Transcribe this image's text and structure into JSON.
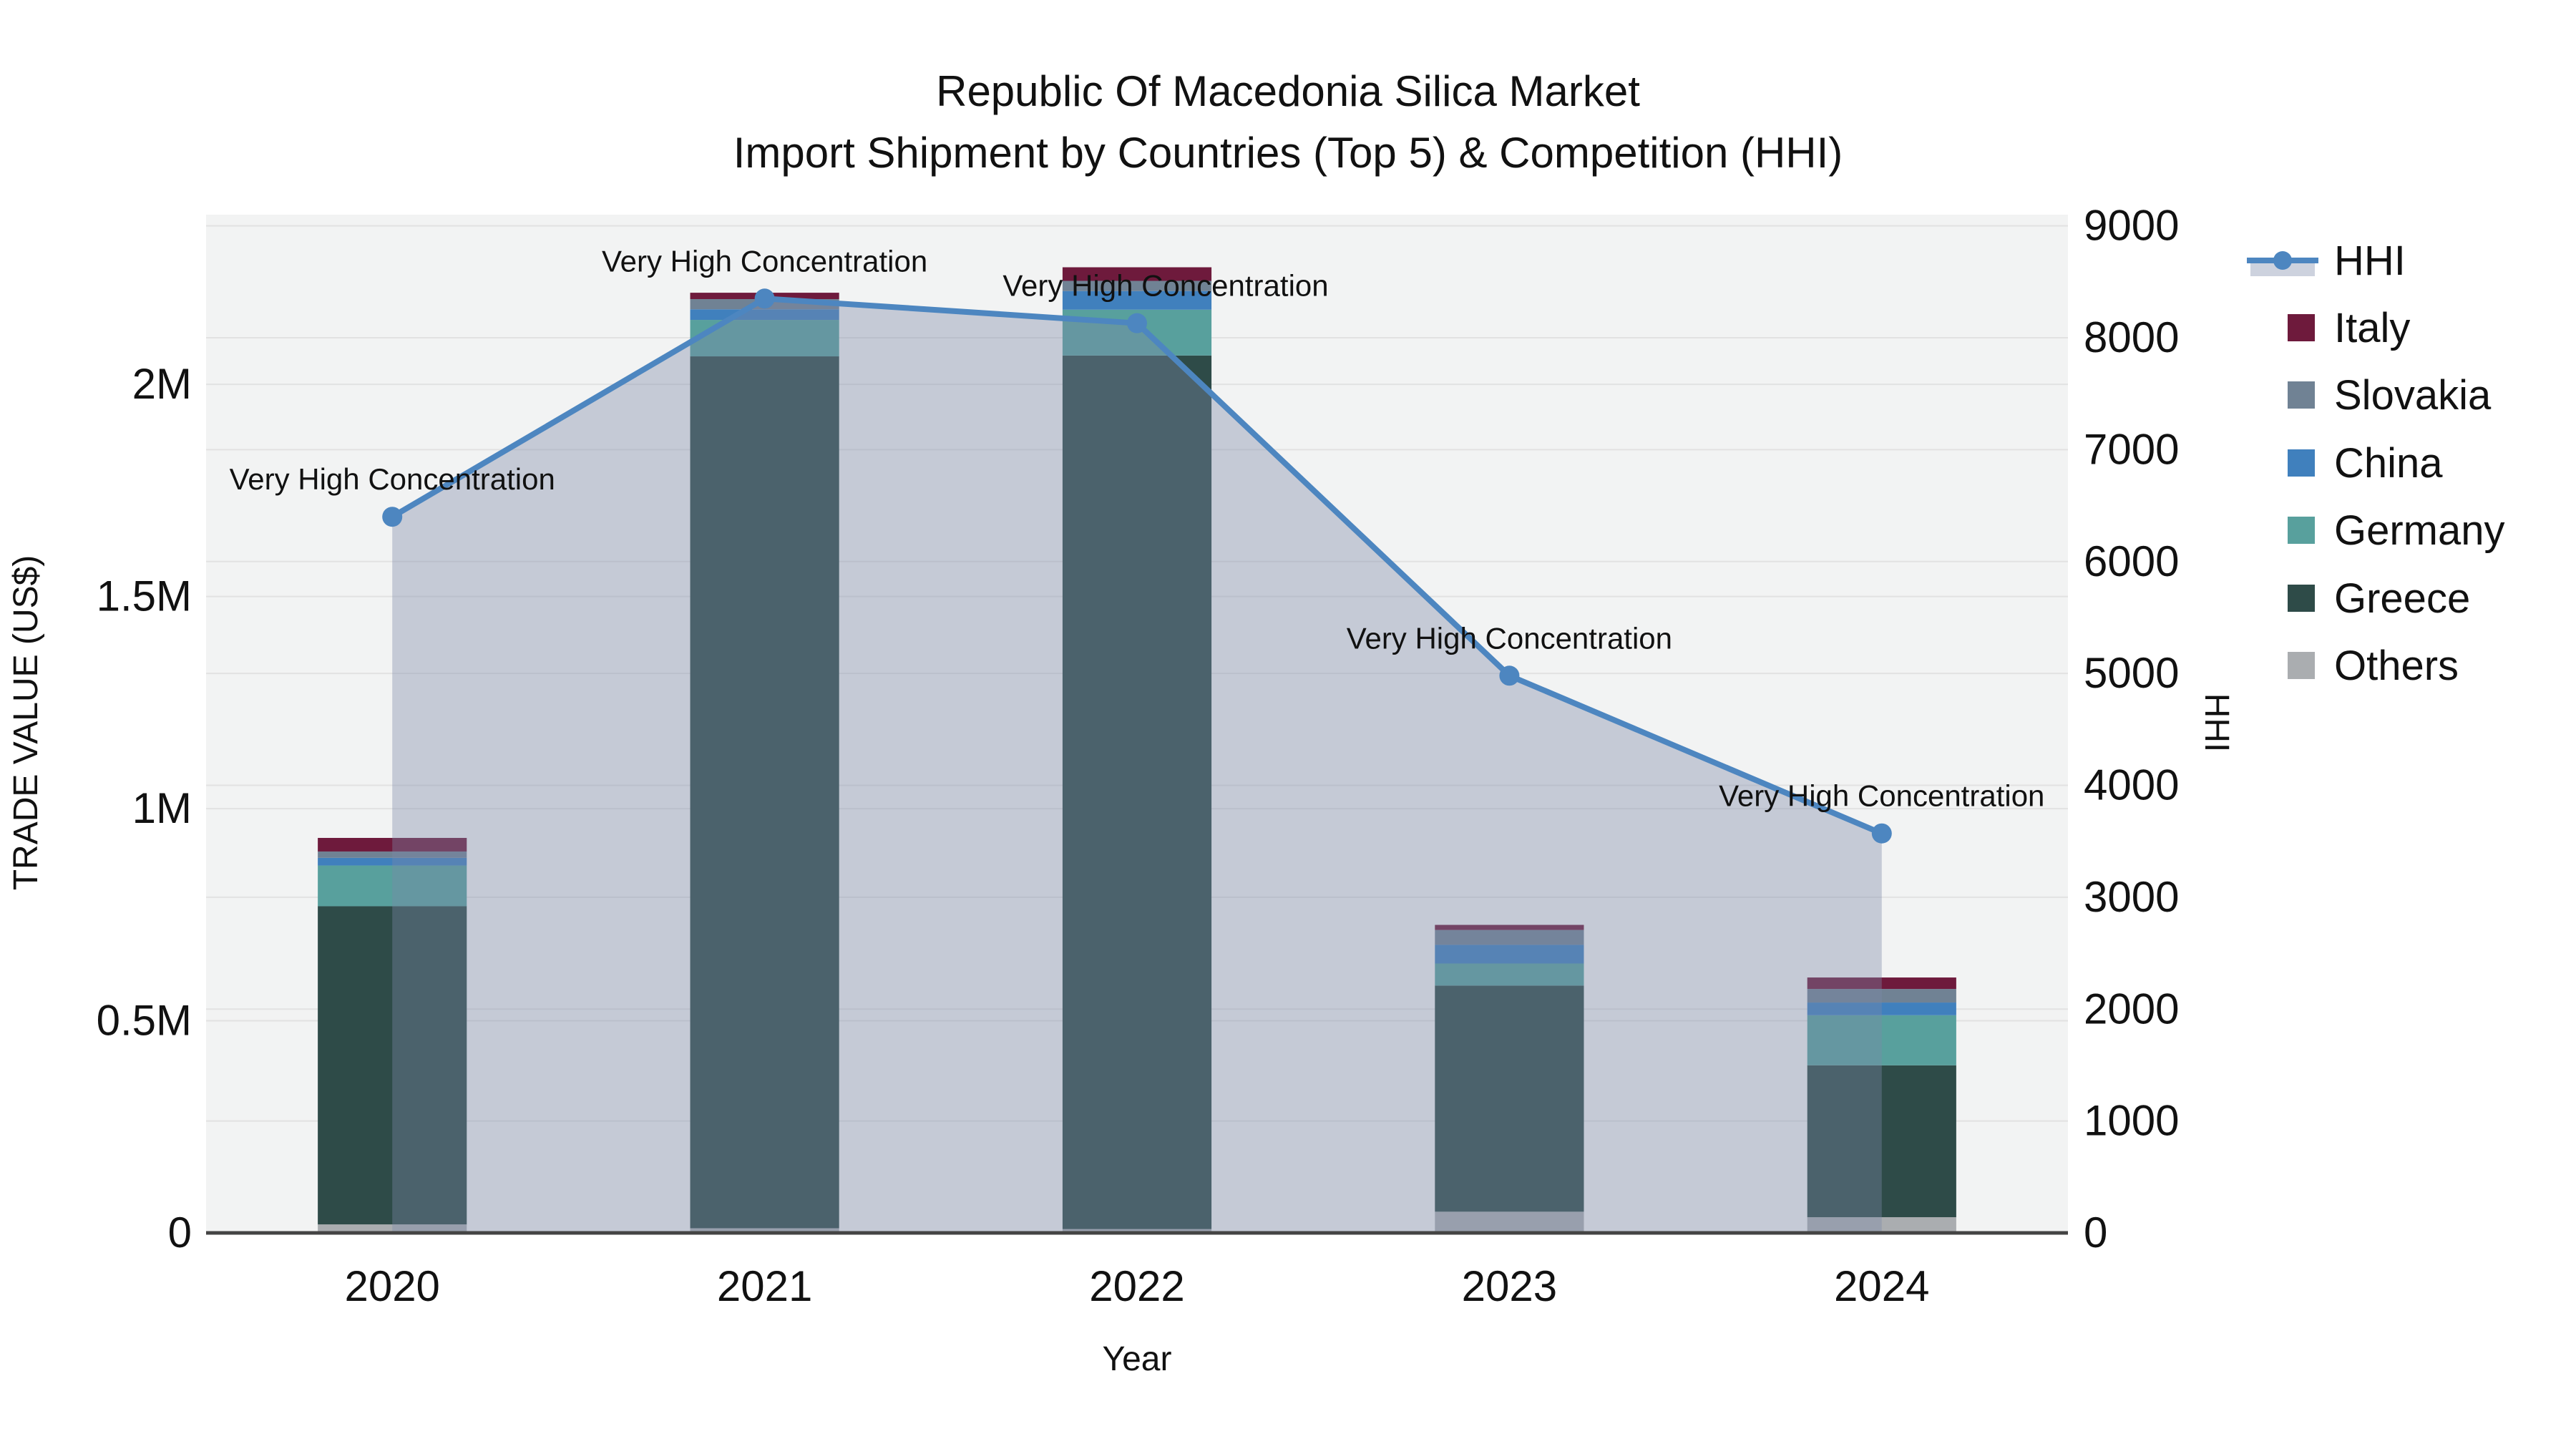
{
  "title": {
    "line1": "Republic Of Macedonia Silica Market",
    "line2": "Import Shipment by Countries (Top 5) & Competition (HHI)"
  },
  "axes": {
    "left": {
      "title": "TRADE VALUE (US$)",
      "ticks": [
        {
          "label": "0",
          "value": 0
        },
        {
          "label": "0.5M",
          "value": 500000
        },
        {
          "label": "1M",
          "value": 1000000
        },
        {
          "label": "1.5M",
          "value": 1500000
        },
        {
          "label": "2M",
          "value": 2000000
        }
      ]
    },
    "right": {
      "title": "HHI",
      "ticks": [
        {
          "label": "0",
          "value": 0
        },
        {
          "label": "1000",
          "value": 1000
        },
        {
          "label": "2000",
          "value": 2000
        },
        {
          "label": "3000",
          "value": 3000
        },
        {
          "label": "4000",
          "value": 4000
        },
        {
          "label": "5000",
          "value": 5000
        },
        {
          "label": "6000",
          "value": 6000
        },
        {
          "label": "7000",
          "value": 7000
        },
        {
          "label": "8000",
          "value": 8000
        },
        {
          "label": "9000",
          "value": 9000
        }
      ]
    },
    "x": {
      "title": "Year"
    }
  },
  "colors": {
    "plot_background": "#f2f3f3",
    "gridline": "#e2e2e2",
    "axis_line": "#444444",
    "hhi_line": "#4d86c0",
    "hhi_fill": "rgba(124,138,168,0.38)",
    "text": "#111111"
  },
  "chart_data": {
    "type": "combo-stacked-bar-line",
    "title": "Republic Of Macedonia Silica Market — Import Shipment by Countries (Top 5) & Competition (HHI)",
    "xlabel": "Year",
    "ylabel": "TRADE VALUE (US$)",
    "y2label": "HHI",
    "ylim": [
      0,
      2400000
    ],
    "y2lim": [
      0,
      9100
    ],
    "grid": true,
    "legend_position": "right",
    "categories": [
      "2020",
      "2021",
      "2022",
      "2023",
      "2024"
    ],
    "bar_series_bottom_to_top": [
      {
        "id": "others",
        "name": "Others",
        "color": "#aaadb0",
        "values": [
          20000,
          11000,
          9000,
          50000,
          37000
        ]
      },
      {
        "id": "greece",
        "name": "Greece",
        "color": "#2e4b48",
        "values": [
          750000,
          2055000,
          2059000,
          533000,
          358000
        ]
      },
      {
        "id": "germany",
        "name": "Germany",
        "color": "#58a09d",
        "values": [
          96000,
          86000,
          108000,
          52000,
          118000
        ]
      },
      {
        "id": "china",
        "name": "China",
        "color": "#4080bd",
        "values": [
          18000,
          25000,
          44000,
          44000,
          30000
        ]
      },
      {
        "id": "slovakia",
        "name": "Slovakia",
        "color": "#708294",
        "values": [
          15000,
          24000,
          24000,
          35000,
          32000
        ]
      },
      {
        "id": "italy",
        "name": "Italy",
        "color": "#6e1a3c",
        "values": [
          32000,
          15000,
          32000,
          12000,
          27000
        ]
      }
    ],
    "bar_totals": [
      931000,
      2216000,
      2276000,
      726000,
      602000
    ],
    "line_series": {
      "id": "hhi",
      "name": "HHI",
      "axis": "right",
      "color": "#4d86c0",
      "fill": "rgba(124,138,168,0.38)",
      "values": [
        6400,
        8350,
        8130,
        4980,
        3570
      ]
    },
    "annotations": [
      {
        "text": "Very High Concentration",
        "category": "2020",
        "dx": 0
      },
      {
        "text": "Very High Concentration",
        "category": "2021",
        "dx": 0
      },
      {
        "text": "Very High Concentration",
        "category": "2022",
        "dx": 40
      },
      {
        "text": "Very High Concentration",
        "category": "2023",
        "dx": 0
      },
      {
        "text": "Very High Concentration",
        "category": "2024",
        "dx": 0
      }
    ],
    "legend_order": [
      "hhi",
      "italy",
      "slovakia",
      "china",
      "germany",
      "greece",
      "others"
    ]
  }
}
